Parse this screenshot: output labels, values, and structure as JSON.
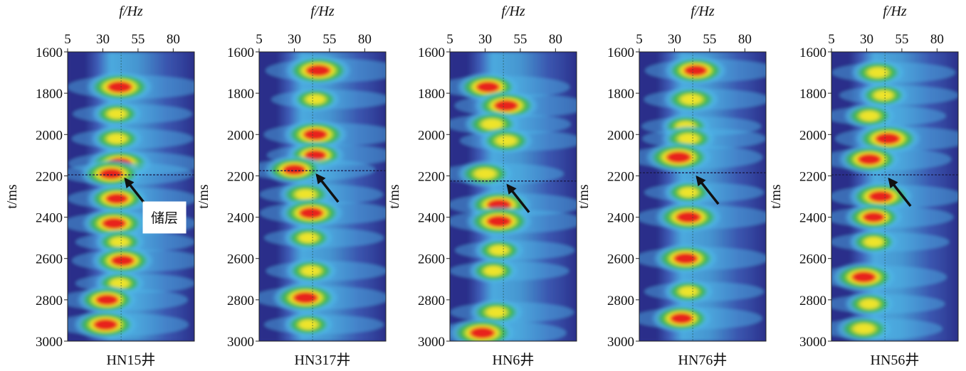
{
  "figure": {
    "x_axis_title": "f/Hz",
    "y_axis_title": "t/ms"
  },
  "colors": {
    "background": "#2a2f8a",
    "low": "#3f5fb8",
    "mid_low": "#4fb8e8",
    "mid": "#39b54a",
    "mid_high": "#f2e526",
    "high": "#e8231f",
    "reservoir_line": "#1a1a4a",
    "arrow": "#111111"
  },
  "annotation": {
    "label": "储层"
  },
  "chart_data": [
    {
      "type": "heatmap",
      "title": "HN15井",
      "xlabel": "f/Hz",
      "ylabel": "t/ms",
      "x_ticks": [
        5,
        30,
        55,
        80
      ],
      "y_ticks": [
        1600,
        1800,
        2000,
        2200,
        2400,
        2600,
        2800,
        3000
      ],
      "xlim": [
        5,
        95
      ],
      "ylim": [
        1600,
        3000
      ],
      "reservoir_time": 2195,
      "blobs": [
        {
          "t": 1770,
          "f": 42,
          "level": 1.0
        },
        {
          "t": 1900,
          "f": 40,
          "level": 0.6
        },
        {
          "t": 2020,
          "f": 40,
          "level": 0.65
        },
        {
          "t": 2140,
          "f": 42,
          "level": 0.95
        },
        {
          "t": 2190,
          "f": 36,
          "level": 0.9
        },
        {
          "t": 2310,
          "f": 40,
          "level": 0.85
        },
        {
          "t": 2430,
          "f": 38,
          "level": 0.95
        },
        {
          "t": 2520,
          "f": 42,
          "level": 0.6
        },
        {
          "t": 2610,
          "f": 44,
          "level": 0.9
        },
        {
          "t": 2720,
          "f": 42,
          "level": 0.6
        },
        {
          "t": 2800,
          "f": 33,
          "level": 0.85
        },
        {
          "t": 2920,
          "f": 32,
          "level": 0.95
        }
      ]
    },
    {
      "type": "heatmap",
      "title": "HN317井",
      "xlabel": "f/Hz",
      "ylabel": "t/ms",
      "x_ticks": [
        5,
        30,
        55,
        80
      ],
      "y_ticks": [
        1600,
        1800,
        2000,
        2200,
        2400,
        2600,
        2800,
        3000
      ],
      "xlim": [
        5,
        95
      ],
      "ylim": [
        1600,
        3000
      ],
      "reservoir_time": 2175,
      "blobs": [
        {
          "t": 1690,
          "f": 47,
          "level": 1.0
        },
        {
          "t": 1830,
          "f": 45,
          "level": 0.6
        },
        {
          "t": 2000,
          "f": 45,
          "level": 0.95
        },
        {
          "t": 2100,
          "f": 45,
          "level": 0.8
        },
        {
          "t": 2170,
          "f": 30,
          "level": 0.85
        },
        {
          "t": 2290,
          "f": 38,
          "level": 0.7
        },
        {
          "t": 2380,
          "f": 42,
          "level": 0.95
        },
        {
          "t": 2500,
          "f": 40,
          "level": 0.6
        },
        {
          "t": 2660,
          "f": 42,
          "level": 0.65
        },
        {
          "t": 2790,
          "f": 38,
          "level": 1.0
        },
        {
          "t": 2920,
          "f": 40,
          "level": 0.6
        }
      ]
    },
    {
      "type": "heatmap",
      "title": "HN6井",
      "xlabel": "f/Hz",
      "ylabel": "t/ms",
      "x_ticks": [
        5,
        30,
        55,
        80
      ],
      "y_ticks": [
        1600,
        1800,
        2000,
        2200,
        2400,
        2600,
        2800,
        3000
      ],
      "xlim": [
        5,
        95
      ],
      "ylim": [
        1600,
        3000
      ],
      "reservoir_time": 2225,
      "blobs": [
        {
          "t": 1770,
          "f": 32,
          "level": 0.9
        },
        {
          "t": 1860,
          "f": 45,
          "level": 0.95
        },
        {
          "t": 1950,
          "f": 35,
          "level": 0.75
        },
        {
          "t": 2030,
          "f": 45,
          "level": 0.7
        },
        {
          "t": 2190,
          "f": 30,
          "level": 0.75
        },
        {
          "t": 2340,
          "f": 40,
          "level": 0.95
        },
        {
          "t": 2420,
          "f": 40,
          "level": 1.0
        },
        {
          "t": 2560,
          "f": 40,
          "level": 0.6
        },
        {
          "t": 2660,
          "f": 36,
          "level": 0.6
        },
        {
          "t": 2860,
          "f": 38,
          "level": 0.7
        },
        {
          "t": 2960,
          "f": 28,
          "level": 1.0
        }
      ]
    },
    {
      "type": "heatmap",
      "title": "HN76井",
      "xlabel": "f/Hz",
      "ylabel": "t/ms",
      "x_ticks": [
        5,
        30,
        55,
        80
      ],
      "y_ticks": [
        1600,
        1800,
        2000,
        2200,
        2400,
        2600,
        2800,
        3000
      ],
      "xlim": [
        5,
        95
      ],
      "ylim": [
        1600,
        3000
      ],
      "reservoir_time": 2185,
      "blobs": [
        {
          "t": 1690,
          "f": 45,
          "level": 0.9
        },
        {
          "t": 1830,
          "f": 42,
          "level": 0.75
        },
        {
          "t": 1960,
          "f": 38,
          "level": 0.6
        },
        {
          "t": 2020,
          "f": 40,
          "level": 0.7
        },
        {
          "t": 2110,
          "f": 33,
          "level": 1.0
        },
        {
          "t": 2280,
          "f": 40,
          "level": 0.6
        },
        {
          "t": 2400,
          "f": 40,
          "level": 1.0
        },
        {
          "t": 2600,
          "f": 38,
          "level": 0.95
        },
        {
          "t": 2760,
          "f": 40,
          "level": 0.6
        },
        {
          "t": 2890,
          "f": 35,
          "level": 0.85
        }
      ]
    },
    {
      "type": "heatmap",
      "title": "HN56井",
      "xlabel": "f/Hz",
      "ylabel": "t/ms",
      "x_ticks": [
        5,
        30,
        55,
        80
      ],
      "y_ticks": [
        1600,
        1800,
        2000,
        2200,
        2400,
        2600,
        2800,
        3000
      ],
      "xlim": [
        5,
        95
      ],
      "ylim": [
        1600,
        3000
      ],
      "reservoir_time": 2195,
      "blobs": [
        {
          "t": 1700,
          "f": 38,
          "level": 0.7
        },
        {
          "t": 1810,
          "f": 42,
          "level": 0.6
        },
        {
          "t": 1910,
          "f": 32,
          "level": 0.65
        },
        {
          "t": 2020,
          "f": 45,
          "level": 1.0
        },
        {
          "t": 2120,
          "f": 32,
          "level": 0.9
        },
        {
          "t": 2300,
          "f": 40,
          "level": 0.95
        },
        {
          "t": 2400,
          "f": 35,
          "level": 0.8
        },
        {
          "t": 2520,
          "f": 35,
          "level": 0.6
        },
        {
          "t": 2690,
          "f": 28,
          "level": 0.95
        },
        {
          "t": 2820,
          "f": 32,
          "level": 0.6
        },
        {
          "t": 2940,
          "f": 28,
          "level": 0.75
        }
      ]
    }
  ]
}
